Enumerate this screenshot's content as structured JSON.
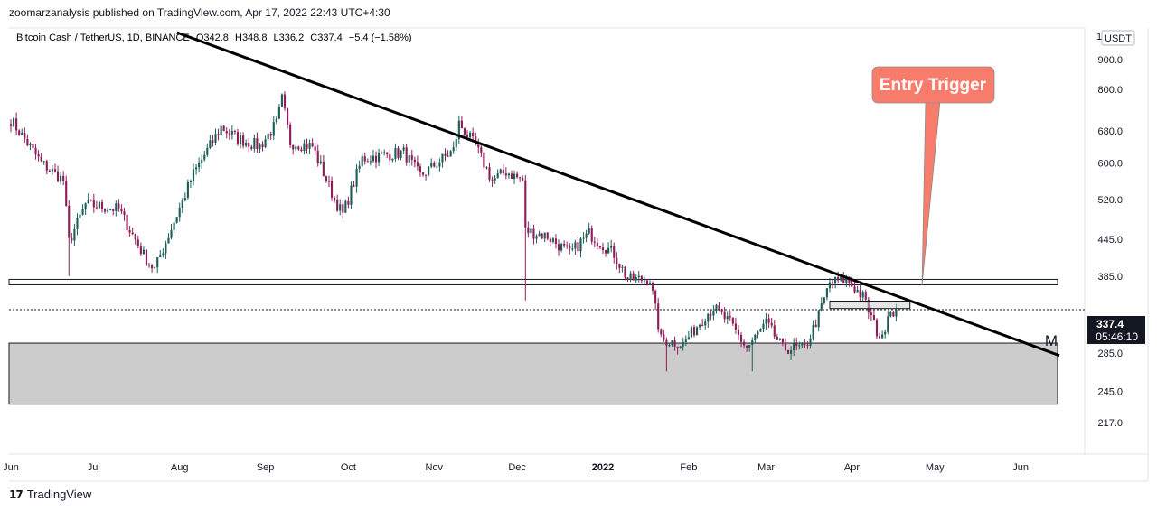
{
  "header": {
    "published_by": "zoomarzanalysis published on TradingView.com, Apr 17, 2022 22:43 UTC+4:30"
  },
  "legend": {
    "symbol": "Bitcoin Cash / TetherUS, 1D, BINANCE",
    "o_label": "O",
    "o_value": "342.8",
    "h_label": "H",
    "h_value": "348.8",
    "l_label": "L",
    "l_value": "336.2",
    "c_label": "C",
    "c_value": "337.4",
    "change": "−5.4 (−1.58%)"
  },
  "price_axis": {
    "currency_badge": "USDT",
    "top_clip": "1",
    "ticks": [
      "900.0",
      "800.0",
      "680.0",
      "600.0",
      "520.0",
      "445.0",
      "385.0",
      "285.0",
      "245.0",
      "217.0"
    ],
    "last_price": "337.4",
    "countdown": "05:46:10"
  },
  "time_axis": {
    "ticks": [
      "Jun",
      "Jul",
      "Aug",
      "Sep",
      "Oct",
      "Nov",
      "Dec",
      "2022",
      "Feb",
      "Mar",
      "Apr",
      "May",
      "Jun"
    ]
  },
  "annotations": {
    "entry_trigger": "Entry Trigger",
    "pattern_label": "M"
  },
  "colors": {
    "up": "#1f5e55",
    "down": "#8e1d5a",
    "trendline": "#000000",
    "callout": "#f77c6c",
    "zone": "#cccccc",
    "price_badge": "#131722"
  },
  "footer": {
    "brand": "TradingView",
    "logo_text": "17"
  },
  "chart_data": {
    "type": "candlestick",
    "title": "Bitcoin Cash / TetherUS, 1D, BINANCE",
    "yscale": "log",
    "ylim": [
      195,
      1000
    ],
    "xlabel": "",
    "ylabel": "USDT",
    "keypoints": [
      {
        "date": "2021-06-01",
        "price": 710
      },
      {
        "date": "2021-06-12",
        "price": 600
      },
      {
        "date": "2021-06-20",
        "price": 560
      },
      {
        "date": "2021-06-22",
        "price": 440
      },
      {
        "date": "2021-06-28",
        "price": 510
      },
      {
        "date": "2021-07-10",
        "price": 500
      },
      {
        "date": "2021-07-20",
        "price": 410
      },
      {
        "date": "2021-07-23",
        "price": 395
      },
      {
        "date": "2021-08-06",
        "price": 575
      },
      {
        "date": "2021-08-16",
        "price": 690
      },
      {
        "date": "2021-08-22",
        "price": 660
      },
      {
        "date": "2021-08-30",
        "price": 640
      },
      {
        "date": "2021-09-05",
        "price": 700
      },
      {
        "date": "2021-09-07",
        "price": 770
      },
      {
        "date": "2021-09-10",
        "price": 650
      },
      {
        "date": "2021-09-18",
        "price": 640
      },
      {
        "date": "2021-09-26",
        "price": 520
      },
      {
        "date": "2021-09-29",
        "price": 490
      },
      {
        "date": "2021-10-06",
        "price": 610
      },
      {
        "date": "2021-10-15",
        "price": 620
      },
      {
        "date": "2021-10-21",
        "price": 625
      },
      {
        "date": "2021-10-27",
        "price": 570
      },
      {
        "date": "2021-11-08",
        "price": 630
      },
      {
        "date": "2021-11-10",
        "price": 700
      },
      {
        "date": "2021-11-16",
        "price": 640
      },
      {
        "date": "2021-11-22",
        "price": 560
      },
      {
        "date": "2021-11-27",
        "price": 580
      },
      {
        "date": "2021-12-03",
        "price": 560
      },
      {
        "date": "2021-12-04",
        "price": 460
      },
      {
        "date": "2021-12-12",
        "price": 450
      },
      {
        "date": "2021-12-20",
        "price": 420
      },
      {
        "date": "2021-12-27",
        "price": 455
      },
      {
        "date": "2022-01-05",
        "price": 420
      },
      {
        "date": "2022-01-10",
        "price": 380
      },
      {
        "date": "2022-01-18",
        "price": 380
      },
      {
        "date": "2022-01-22",
        "price": 300
      },
      {
        "date": "2022-01-30",
        "price": 295
      },
      {
        "date": "2022-02-07",
        "price": 330
      },
      {
        "date": "2022-02-10",
        "price": 340
      },
      {
        "date": "2022-02-16",
        "price": 320
      },
      {
        "date": "2022-02-22",
        "price": 290
      },
      {
        "date": "2022-03-01",
        "price": 320
      },
      {
        "date": "2022-03-07",
        "price": 290
      },
      {
        "date": "2022-03-15",
        "price": 290
      },
      {
        "date": "2022-03-20",
        "price": 330
      },
      {
        "date": "2022-03-24",
        "price": 375
      },
      {
        "date": "2022-03-30",
        "price": 380
      },
      {
        "date": "2022-04-05",
        "price": 355
      },
      {
        "date": "2022-04-10",
        "price": 310
      },
      {
        "date": "2022-04-12",
        "price": 300
      },
      {
        "date": "2022-04-14",
        "price": 335
      },
      {
        "date": "2022-04-17",
        "price": 337.4
      }
    ],
    "wicks_low": [
      {
        "date": "2021-06-22",
        "price": 385
      },
      {
        "date": "2021-12-04",
        "price": 350
      },
      {
        "date": "2022-01-24",
        "price": 265
      },
      {
        "date": "2022-02-24",
        "price": 265
      }
    ],
    "horizontal_levels": [
      {
        "name": "resistance",
        "price_from": 372,
        "price_to": 380
      },
      {
        "name": "demand-zone",
        "price_from": 233,
        "price_to": 296
      },
      {
        "name": "consolidation-box",
        "price_from": 339,
        "price_to": 349,
        "date_from": "2022-03-24",
        "date_to": "2022-04-22"
      }
    ],
    "trendline": {
      "start": {
        "date": "2021-07-31",
        "price": 1000
      },
      "end": {
        "date": "2022-06-15",
        "price": 282
      }
    }
  }
}
